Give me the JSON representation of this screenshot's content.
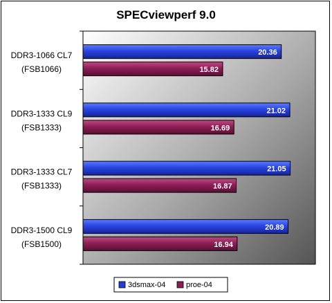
{
  "chart_data": {
    "type": "bar",
    "orientation": "horizontal",
    "title": "SPECviewperf 9.0",
    "categories": [
      [
        "DDR3-1066 CL7",
        "(FSB1066)"
      ],
      [
        "DDR3-1333 CL9",
        "(FSB1333)"
      ],
      [
        "DDR3-1333 CL7",
        "(FSB1333)"
      ],
      [
        "DDR3-1500 CL9",
        "(FSB1500)"
      ]
    ],
    "series": [
      {
        "name": "3dsmax-04",
        "values": [
          20.36,
          21.02,
          21.05,
          20.89
        ],
        "labels": [
          "20.36",
          "21.02",
          "21.05",
          "20.89"
        ],
        "color": "#1f3fd6"
      },
      {
        "name": "proe-04",
        "values": [
          15.82,
          16.69,
          16.87,
          16.94
        ],
        "labels": [
          "15.82",
          "16.69",
          "16.87",
          "16.94"
        ],
        "color": "#8a1f52"
      }
    ],
    "xlim": [
      5,
      23
    ],
    "grid": false,
    "legend_position": "bottom"
  }
}
